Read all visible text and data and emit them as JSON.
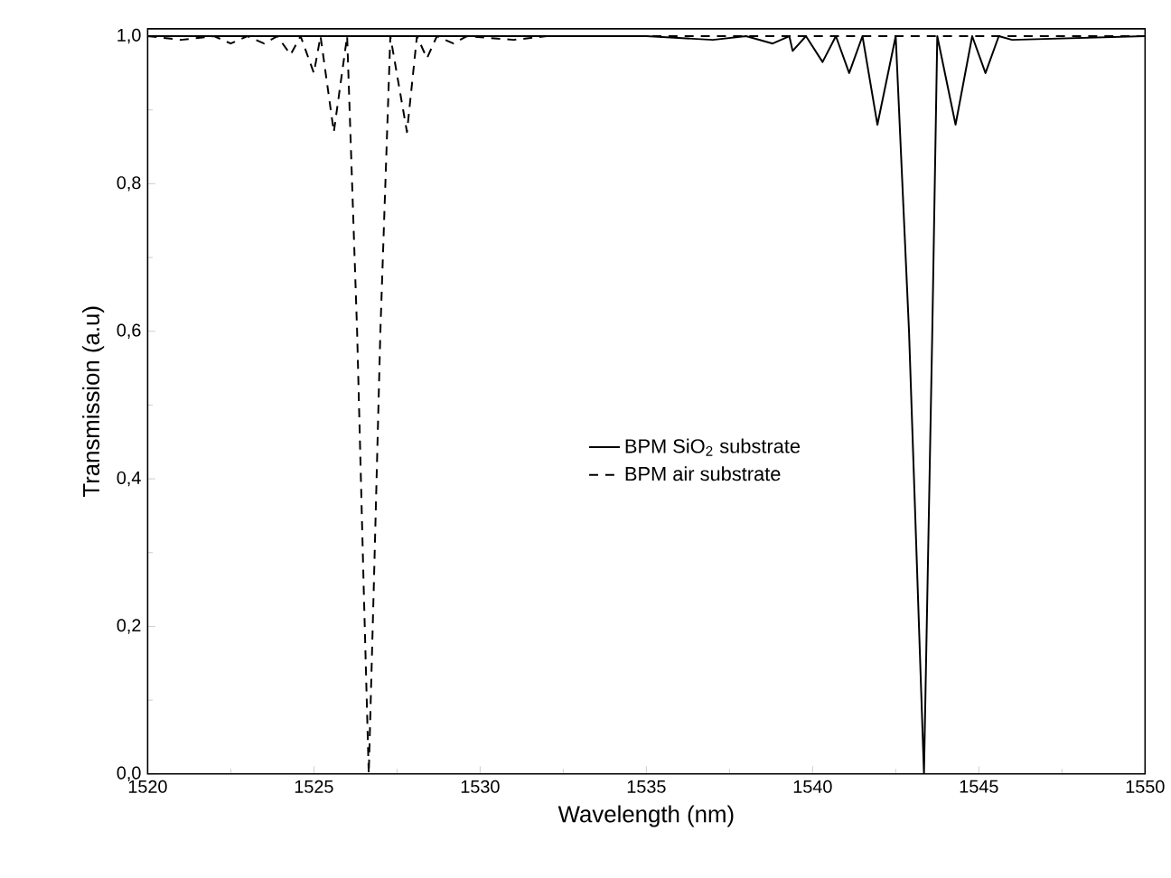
{
  "chart_data": {
    "type": "line",
    "xlabel": "Wavelength (nm)",
    "ylabel": "Transmission (a.u)",
    "xlim": [
      1520,
      1550
    ],
    "ylim": [
      0,
      1.01
    ],
    "xticks": [
      1520,
      1525,
      1530,
      1535,
      1540,
      1545,
      1550
    ],
    "yticks": [
      {
        "value": 0,
        "label": "0,0"
      },
      {
        "value": 0.2,
        "label": "0,2"
      },
      {
        "value": 0.4,
        "label": "0,4"
      },
      {
        "value": 0.6,
        "label": "0,6"
      },
      {
        "value": 0.8,
        "label": "0,8"
      },
      {
        "value": 1.0,
        "label": "1,0"
      }
    ],
    "grid": false,
    "legend": "center",
    "marker": "none",
    "series": [
      {
        "name": "BPM SiO$_{2}$ substrate",
        "color": "#000000",
        "line_style": "solid",
        "x": [
          1520,
          1535,
          1537,
          1538,
          1538.8,
          1539.3,
          1539.4,
          1539.8,
          1540.3,
          1540.7,
          1541.1,
          1541.5,
          1541.95,
          1542.5,
          1542.9,
          1543.35,
          1543.6,
          1543.75,
          1544.3,
          1544.8,
          1545.2,
          1545.6,
          1546,
          1550
        ],
        "values": [
          1.0,
          1.0,
          0.995,
          1.0,
          0.99,
          1.0,
          0.98,
          1.0,
          0.965,
          1.0,
          0.95,
          1.0,
          0.88,
          1.0,
          0.6,
          0.0,
          0.6,
          1.0,
          0.88,
          1.0,
          0.95,
          1.0,
          0.995,
          1.0
        ]
      },
      {
        "name": "BPM air substrate",
        "color": "#000000",
        "line_style": "dashed",
        "x": [
          1520,
          1521,
          1522,
          1522.5,
          1523,
          1523.5,
          1523.9,
          1524.3,
          1524.6,
          1525.0,
          1525.2,
          1525.6,
          1526.0,
          1526.3,
          1526.5,
          1526.65,
          1526.8,
          1527.0,
          1527.3,
          1527.8,
          1528.1,
          1528.4,
          1528.7,
          1529.2,
          1529.6,
          1531,
          1532,
          1550
        ],
        "values": [
          1.0,
          0.995,
          1.0,
          0.99,
          1.0,
          0.99,
          1.0,
          0.975,
          1.0,
          0.95,
          1.0,
          0.87,
          1.0,
          0.6,
          0.25,
          0.0,
          0.25,
          0.6,
          1.0,
          0.87,
          1.0,
          0.97,
          1.0,
          0.99,
          1.0,
          0.995,
          1.0,
          1.0
        ]
      }
    ]
  }
}
